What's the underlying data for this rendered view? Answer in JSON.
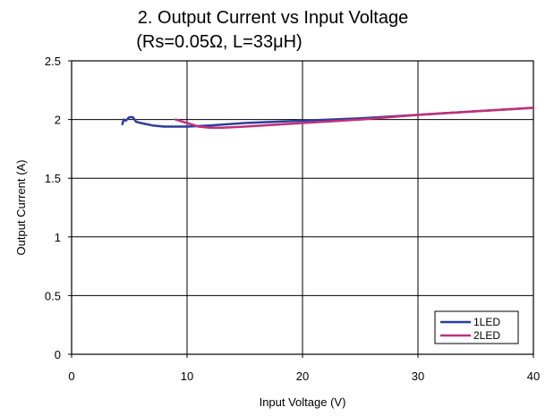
{
  "chart_data": {
    "type": "line",
    "title": "2. Output Current vs Input Voltage",
    "subtitle": "(Rs=0.05Ω, L=33μH)",
    "xlabel": "Input Voltage (V)",
    "ylabel": "Output Current (A)",
    "xlim": [
      0,
      40
    ],
    "ylim": [
      0,
      2.5
    ],
    "xticks": [
      0,
      10,
      20,
      30,
      40
    ],
    "yticks": [
      0,
      0.5,
      1,
      1.5,
      2,
      2.5
    ],
    "xtick_labels": [
      "0",
      "10",
      "20",
      "30",
      "40"
    ],
    "ytick_labels": [
      "0",
      "0.5",
      "1",
      "1.5",
      "2",
      "2.5"
    ],
    "grid": true,
    "legend_position": "bottom-right",
    "series": [
      {
        "name": "1LED",
        "color": "#2d3d9a",
        "x": [
          4.4,
          4.5,
          4.7,
          5.0,
          5.3,
          5.6,
          6.0,
          7.0,
          8.0,
          10.0,
          12.0,
          15.0,
          20.0,
          25.0,
          30.0,
          35.0,
          40.0
        ],
        "y": [
          1.96,
          2.0,
          1.99,
          2.02,
          2.02,
          1.98,
          1.97,
          1.95,
          1.94,
          1.94,
          1.95,
          1.97,
          1.99,
          2.01,
          2.04,
          2.07,
          2.1
        ]
      },
      {
        "name": "2LED",
        "color": "#c0307a",
        "x": [
          9.0,
          10.0,
          11.0,
          12.0,
          13.0,
          15.0,
          20.0,
          25.0,
          30.0,
          35.0,
          40.0
        ],
        "y": [
          2.0,
          1.97,
          1.94,
          1.93,
          1.93,
          1.94,
          1.97,
          2.0,
          2.04,
          2.07,
          2.1
        ]
      }
    ]
  }
}
